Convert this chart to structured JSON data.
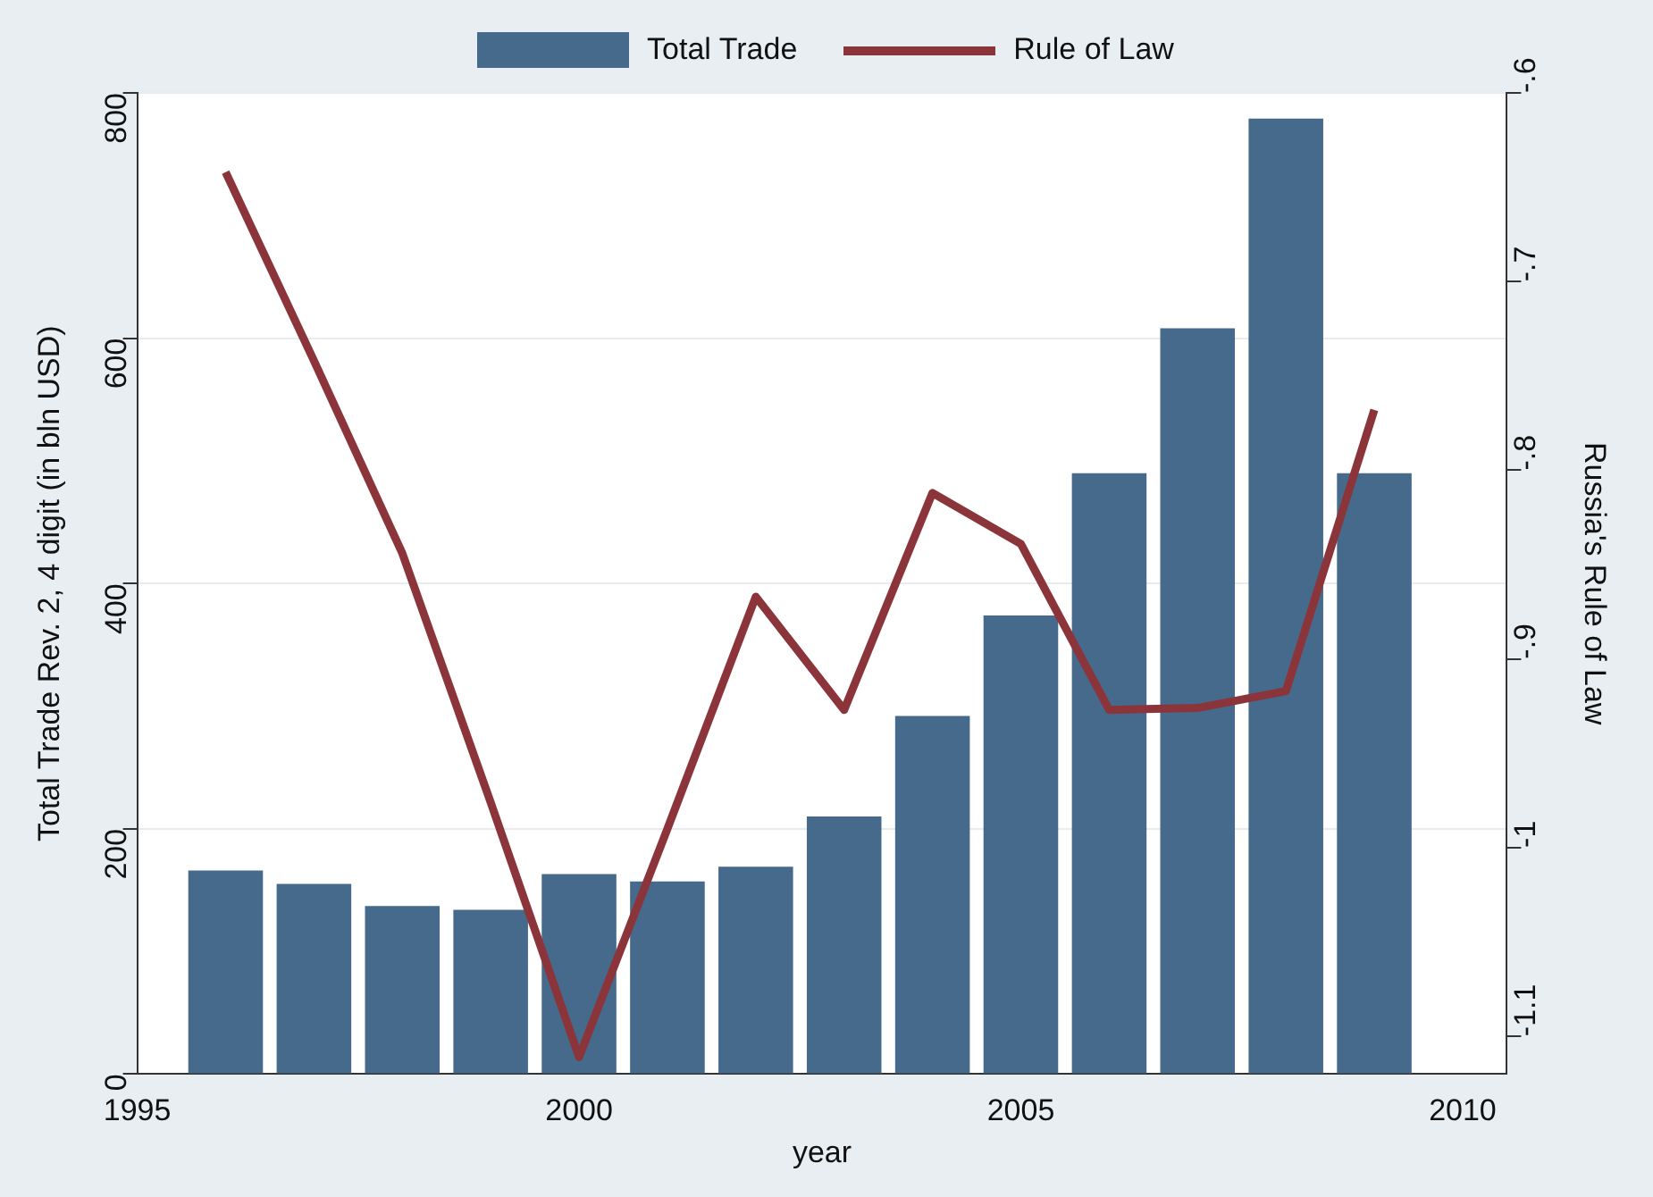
{
  "chart_data": {
    "type": "bar",
    "xlabel": "year",
    "ylabel": "Total Trade Rev. 2, 4 digit (in bln USD)",
    "y2label": "Russia's Rule of Law",
    "x": [
      1996,
      1997,
      1998,
      1999,
      2000,
      2001,
      2002,
      2003,
      2004,
      2005,
      2006,
      2007,
      2008,
      2009
    ],
    "series": [
      {
        "name": "Total Trade",
        "color": "#456a8c",
        "values": [
          166,
          155,
          137,
          134,
          163,
          157,
          169,
          210,
          292,
          374,
          490,
          608,
          779,
          490
        ]
      },
      {
        "name": "Rule of Law",
        "type": "line",
        "axis": "y2",
        "color": "#8b353b",
        "values": [
          -0.642,
          -0.742,
          -0.844,
          -0.976,
          -1.111,
          -0.99,
          -0.867,
          -0.927,
          -0.812,
          -0.839,
          -0.927,
          -0.926,
          -0.917,
          -0.768
        ]
      }
    ],
    "xlim": [
      1995,
      2010.5
    ],
    "xticks": [
      1995,
      2000,
      2005,
      2010
    ],
    "ylim": [
      0,
      800
    ],
    "yticks": [
      0,
      200,
      400,
      600,
      800
    ],
    "y2lim": [
      -1.12,
      -0.6
    ],
    "y2ticks": [
      {
        "value": -1.1,
        "label": "-1.1"
      },
      {
        "value": -1,
        "label": "-1"
      },
      {
        "value": -0.9,
        "label": "-.9"
      },
      {
        "value": -0.8,
        "label": "-.8"
      },
      {
        "value": -0.7,
        "label": "-.7"
      },
      {
        "value": -0.6,
        "label": "-.6"
      }
    ],
    "grid": "y",
    "legend": "top",
    "marker": "none",
    "line_style": "solid"
  }
}
